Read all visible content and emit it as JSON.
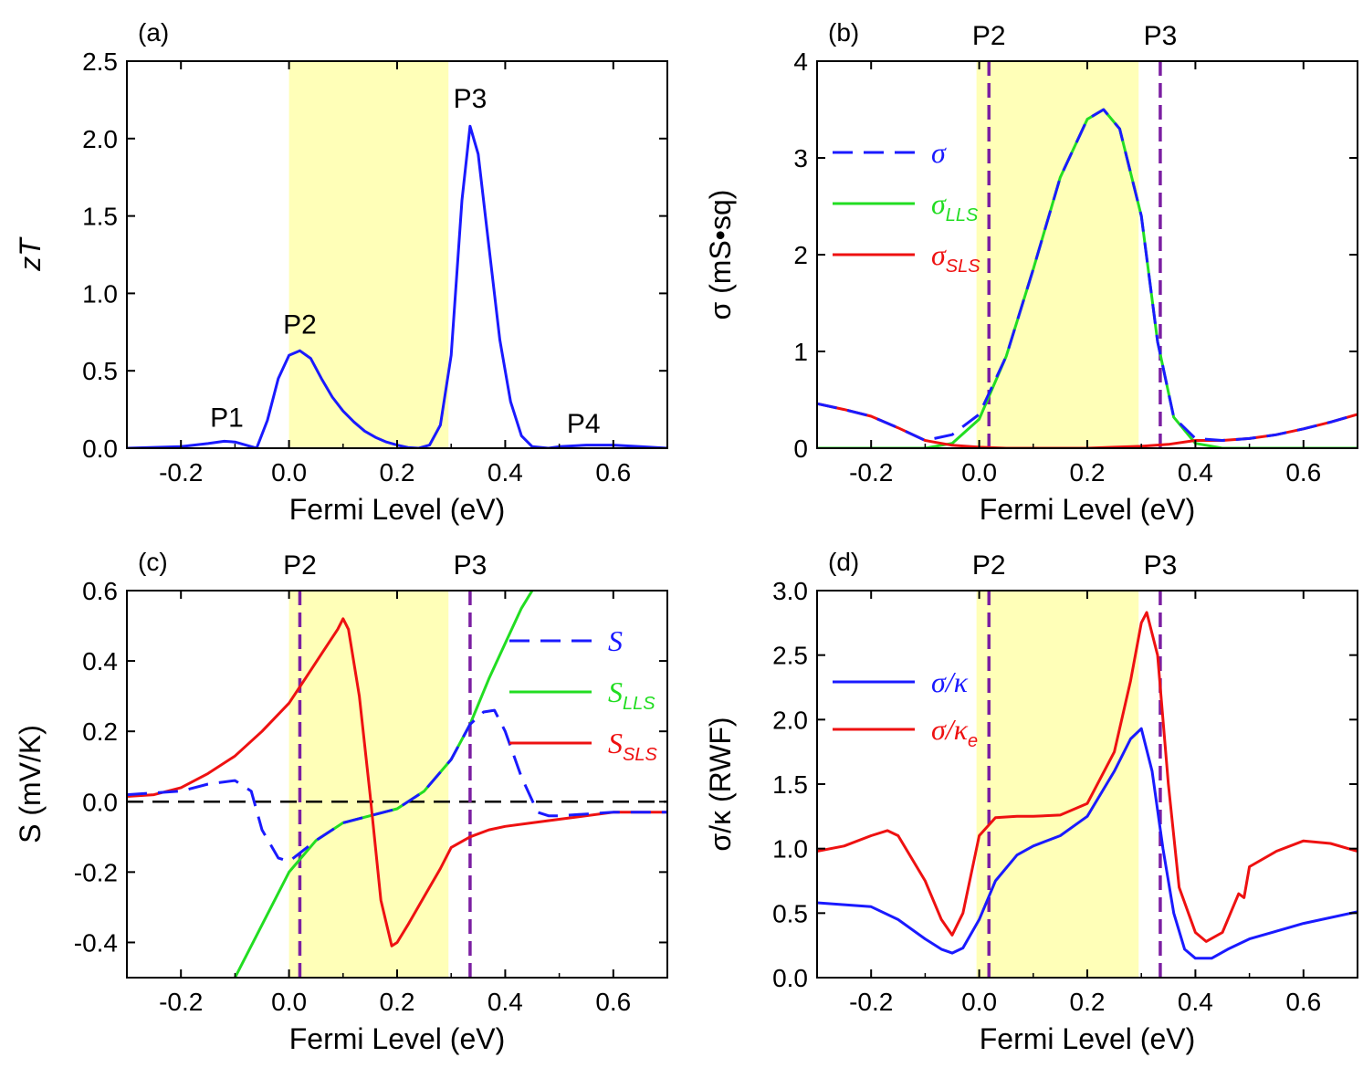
{
  "chart_data": [
    {
      "panel": "(a)",
      "type": "line",
      "xlabel": "Fermi Level (eV)",
      "ylabel": "zT",
      "xlim": [
        -0.3,
        0.7
      ],
      "ylim": [
        0,
        2.5
      ],
      "xticks": [
        "-0.2",
        "0.0",
        "0.2",
        "0.4",
        "0.6"
      ],
      "yticks": [
        "0.0",
        "0.5",
        "1.0",
        "1.5",
        "2.0",
        "2.5"
      ],
      "shaded_region": [
        0.0,
        0.295
      ],
      "annotations": [
        {
          "text": "P1",
          "x": -0.115,
          "y": 0.14
        },
        {
          "text": "P2",
          "x": 0.02,
          "y": 0.74
        },
        {
          "text": "P3",
          "x": 0.335,
          "y": 2.2
        },
        {
          "text": "P4",
          "x": 0.545,
          "y": 0.1
        }
      ],
      "series": [
        {
          "name": "zT",
          "color": "#1a1aff",
          "style": "solid",
          "x": [
            -0.3,
            -0.2,
            -0.15,
            -0.12,
            -0.1,
            -0.08,
            -0.06,
            -0.04,
            -0.02,
            0.0,
            0.02,
            0.04,
            0.06,
            0.08,
            0.1,
            0.12,
            0.14,
            0.16,
            0.18,
            0.2,
            0.22,
            0.24,
            0.26,
            0.28,
            0.3,
            0.32,
            0.335,
            0.35,
            0.37,
            0.39,
            0.41,
            0.43,
            0.45,
            0.48,
            0.5,
            0.55,
            0.6,
            0.65,
            0.7
          ],
          "y": [
            0.0,
            0.01,
            0.03,
            0.045,
            0.04,
            0.02,
            0.0,
            0.18,
            0.45,
            0.6,
            0.63,
            0.58,
            0.45,
            0.33,
            0.24,
            0.17,
            0.11,
            0.07,
            0.04,
            0.02,
            0.005,
            0.0,
            0.02,
            0.15,
            0.6,
            1.6,
            2.08,
            1.9,
            1.3,
            0.7,
            0.3,
            0.08,
            0.01,
            0.0,
            0.01,
            0.02,
            0.02,
            0.01,
            0.0
          ]
        }
      ]
    },
    {
      "panel": "(b)",
      "type": "line",
      "xlabel": "Fermi Level (eV)",
      "ylabel": "σ (mS•sq)",
      "xlim": [
        -0.3,
        0.7
      ],
      "ylim": [
        0,
        4
      ],
      "xticks": [
        "-0.2",
        "0.0",
        "0.2",
        "0.4",
        "0.6"
      ],
      "yticks": [
        "0",
        "1",
        "2",
        "3",
        "4"
      ],
      "shaded_region": [
        -0.005,
        0.295
      ],
      "markers": [
        {
          "text": "P2",
          "x": 0.018
        },
        {
          "text": "P3",
          "x": 0.335
        }
      ],
      "legend": [
        "σ",
        "σLLS",
        "σSLS"
      ],
      "series": [
        {
          "name": "σ",
          "color": "#1a1aff",
          "style": "dashed",
          "x": [
            -0.3,
            -0.25,
            -0.2,
            -0.15,
            -0.1,
            -0.05,
            0.0,
            0.05,
            0.1,
            0.15,
            0.2,
            0.23,
            0.26,
            0.3,
            0.33,
            0.36,
            0.4,
            0.45,
            0.5,
            0.55,
            0.6,
            0.65,
            0.7
          ],
          "y": [
            0.46,
            0.4,
            0.33,
            0.21,
            0.08,
            0.14,
            0.35,
            0.95,
            1.85,
            2.8,
            3.4,
            3.5,
            3.3,
            2.4,
            1.1,
            0.32,
            0.1,
            0.08,
            0.1,
            0.14,
            0.2,
            0.27,
            0.35
          ]
        },
        {
          "name": "σLLS",
          "color": "#22dd22",
          "style": "solid",
          "x": [
            -0.3,
            -0.15,
            -0.1,
            -0.05,
            0.0,
            0.05,
            0.1,
            0.15,
            0.2,
            0.23,
            0.26,
            0.3,
            0.33,
            0.36,
            0.4,
            0.45,
            0.5,
            0.7
          ],
          "y": [
            0.0,
            0.0,
            0.0,
            0.05,
            0.3,
            0.95,
            1.85,
            2.8,
            3.4,
            3.5,
            3.3,
            2.4,
            1.1,
            0.32,
            0.05,
            0.0,
            0.0,
            0.0
          ]
        },
        {
          "name": "σSLS",
          "color": "#ee1111",
          "style": "solid",
          "x": [
            -0.3,
            -0.25,
            -0.2,
            -0.15,
            -0.1,
            -0.05,
            0.0,
            0.05,
            0.1,
            0.15,
            0.2,
            0.25,
            0.3,
            0.35,
            0.4,
            0.45,
            0.5,
            0.55,
            0.6,
            0.65,
            0.7
          ],
          "y": [
            0.46,
            0.4,
            0.33,
            0.21,
            0.08,
            0.03,
            0.01,
            0.0,
            0.0,
            0.0,
            0.0,
            0.01,
            0.02,
            0.04,
            0.08,
            0.08,
            0.1,
            0.14,
            0.2,
            0.27,
            0.35
          ]
        }
      ]
    },
    {
      "panel": "(c)",
      "type": "line",
      "xlabel": "Fermi Level (eV)",
      "ylabel": "S (mV/K)",
      "xlim": [
        -0.3,
        0.7
      ],
      "ylim": [
        -0.5,
        0.6
      ],
      "xticks": [
        "-0.2",
        "0.0",
        "0.2",
        "0.4",
        "0.6"
      ],
      "yticks": [
        "-0.4",
        "-0.2",
        "0.0",
        "0.2",
        "0.4",
        "0.6"
      ],
      "shaded_region": [
        0.0,
        0.295
      ],
      "markers": [
        {
          "text": "P2",
          "x": 0.02
        },
        {
          "text": "P3",
          "x": 0.335
        }
      ],
      "legend": [
        "S",
        "SLLS",
        "SSLS"
      ],
      "series": [
        {
          "name": "S",
          "color": "#1a1aff",
          "style": "dashed",
          "x": [
            -0.3,
            -0.2,
            -0.15,
            -0.1,
            -0.07,
            -0.05,
            -0.02,
            0.0,
            0.05,
            0.1,
            0.15,
            0.2,
            0.25,
            0.3,
            0.335,
            0.36,
            0.38,
            0.4,
            0.43,
            0.46,
            0.48,
            0.5,
            0.6,
            0.7
          ],
          "y": [
            0.02,
            0.03,
            0.05,
            0.06,
            0.03,
            -0.08,
            -0.16,
            -0.17,
            -0.11,
            -0.06,
            -0.04,
            -0.02,
            0.03,
            0.12,
            0.22,
            0.255,
            0.26,
            0.2,
            0.07,
            -0.03,
            -0.04,
            -0.04,
            -0.03,
            -0.03
          ]
        },
        {
          "name": "SLLS",
          "color": "#22dd22",
          "style": "solid",
          "x": [
            -0.1,
            -0.05,
            0.0,
            0.05,
            0.1,
            0.15,
            0.2,
            0.25,
            0.3,
            0.335,
            0.37,
            0.4,
            0.43,
            0.45
          ],
          "y": [
            -0.5,
            -0.35,
            -0.2,
            -0.11,
            -0.06,
            -0.04,
            -0.02,
            0.03,
            0.12,
            0.22,
            0.35,
            0.45,
            0.55,
            0.6
          ]
        },
        {
          "name": "SSLS",
          "color": "#ee1111",
          "style": "solid",
          "x": [
            -0.3,
            -0.25,
            -0.2,
            -0.15,
            -0.1,
            -0.05,
            0.0,
            0.03,
            0.06,
            0.09,
            0.1,
            0.11,
            0.13,
            0.15,
            0.17,
            0.19,
            0.2,
            0.22,
            0.25,
            0.28,
            0.3,
            0.335,
            0.37,
            0.4,
            0.45,
            0.5,
            0.6,
            0.7
          ],
          "y": [
            0.015,
            0.02,
            0.04,
            0.08,
            0.13,
            0.2,
            0.28,
            0.35,
            0.42,
            0.49,
            0.52,
            0.49,
            0.3,
            0.02,
            -0.28,
            -0.41,
            -0.4,
            -0.35,
            -0.27,
            -0.19,
            -0.13,
            -0.1,
            -0.08,
            -0.07,
            -0.06,
            -0.05,
            -0.03,
            -0.03
          ]
        }
      ],
      "reference_line": {
        "y": 0.0,
        "color": "#000000",
        "style": "dashed"
      }
    },
    {
      "panel": "(d)",
      "type": "line",
      "xlabel": "Fermi Level (eV)",
      "ylabel": "σ/κ (RWF)",
      "xlim": [
        -0.3,
        0.7
      ],
      "ylim": [
        0,
        3.0
      ],
      "xticks": [
        "-0.2",
        "0.0",
        "0.2",
        "0.4",
        "0.6"
      ],
      "yticks": [
        "0.0",
        "0.5",
        "1.0",
        "1.5",
        "2.0",
        "2.5",
        "3.0"
      ],
      "shaded_region": [
        -0.005,
        0.295
      ],
      "markers": [
        {
          "text": "P2",
          "x": 0.018
        },
        {
          "text": "P3",
          "x": 0.335
        }
      ],
      "legend": [
        "σ/κ",
        "σ/κe"
      ],
      "series": [
        {
          "name": "σ/κ",
          "color": "#1a1aff",
          "style": "solid",
          "x": [
            -0.3,
            -0.2,
            -0.15,
            -0.1,
            -0.07,
            -0.05,
            -0.03,
            0.0,
            0.03,
            0.07,
            0.1,
            0.15,
            0.2,
            0.25,
            0.28,
            0.3,
            0.32,
            0.34,
            0.36,
            0.38,
            0.4,
            0.43,
            0.46,
            0.5,
            0.6,
            0.7
          ],
          "y": [
            0.58,
            0.55,
            0.45,
            0.3,
            0.22,
            0.19,
            0.23,
            0.45,
            0.75,
            0.95,
            1.02,
            1.1,
            1.25,
            1.6,
            1.85,
            1.93,
            1.6,
            1.0,
            0.5,
            0.22,
            0.15,
            0.15,
            0.22,
            0.3,
            0.42,
            0.51
          ]
        },
        {
          "name": "σ/κe",
          "color": "#ee1111",
          "style": "solid",
          "x": [
            -0.3,
            -0.25,
            -0.2,
            -0.17,
            -0.15,
            -0.1,
            -0.07,
            -0.05,
            -0.03,
            0.0,
            0.03,
            0.07,
            0.1,
            0.15,
            0.2,
            0.25,
            0.28,
            0.3,
            0.31,
            0.33,
            0.35,
            0.37,
            0.4,
            0.42,
            0.45,
            0.48,
            0.49,
            0.5,
            0.55,
            0.6,
            0.65,
            0.7
          ],
          "y": [
            0.98,
            1.02,
            1.1,
            1.14,
            1.1,
            0.75,
            0.45,
            0.33,
            0.5,
            1.1,
            1.24,
            1.25,
            1.25,
            1.26,
            1.35,
            1.75,
            2.3,
            2.75,
            2.83,
            2.5,
            1.5,
            0.7,
            0.35,
            0.28,
            0.35,
            0.65,
            0.62,
            0.86,
            0.98,
            1.06,
            1.04,
            0.98
          ]
        }
      ]
    }
  ]
}
